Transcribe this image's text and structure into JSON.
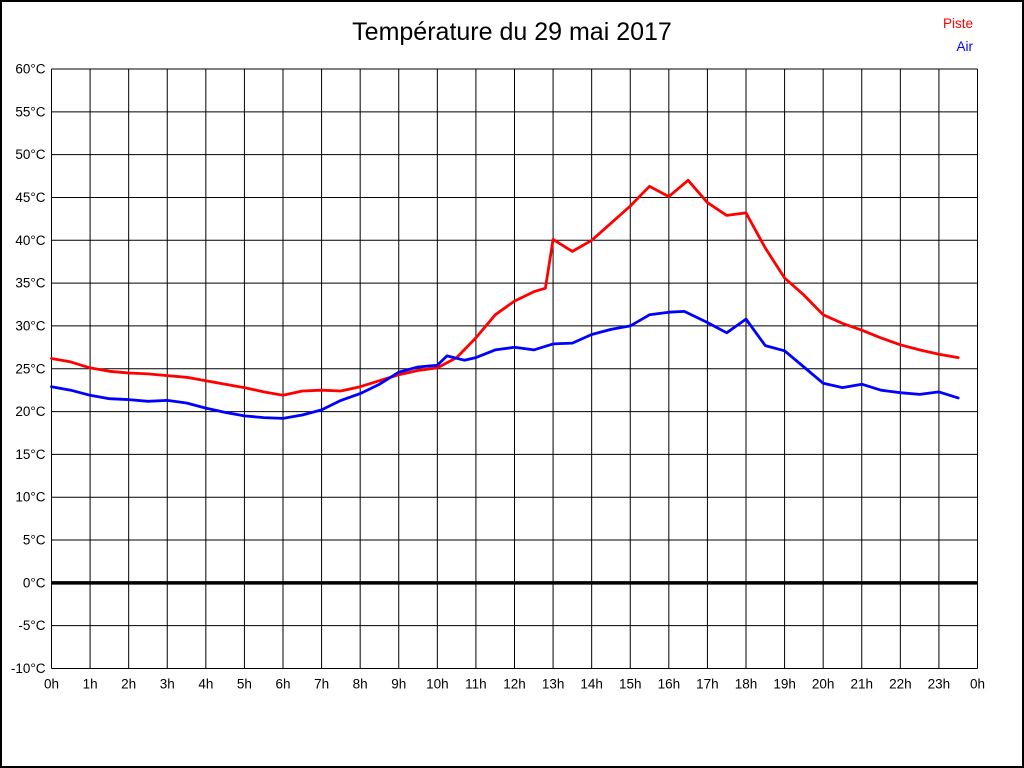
{
  "title": "Température du 29 mai 2017",
  "legend": {
    "position": "top-right",
    "items": [
      {
        "label": "Piste",
        "color": "#ff0000"
      },
      {
        "label": "Air",
        "color": "#0000ff"
      }
    ]
  },
  "chart_data": {
    "type": "line",
    "title": "Température du 29 mai 2017",
    "xlabel": "",
    "ylabel": "",
    "xlim": [
      0,
      24
    ],
    "ylim": [
      -10,
      60
    ],
    "grid": true,
    "grid_color": "#000000",
    "zero_line": {
      "value": 0,
      "color": "#000000",
      "width": 3.5
    },
    "x_tick_step_hours": 1,
    "x_ticks": [
      "0h",
      "1h",
      "2h",
      "3h",
      "4h",
      "5h",
      "6h",
      "7h",
      "8h",
      "9h",
      "10h",
      "11h",
      "12h",
      "13h",
      "14h",
      "15h",
      "16h",
      "17h",
      "18h",
      "19h",
      "20h",
      "21h",
      "22h",
      "23h",
      "0h"
    ],
    "y_tick_step": 5,
    "y_ticks": [
      "60°C",
      "55°C",
      "50°C",
      "45°C",
      "40°C",
      "35°C",
      "30°C",
      "25°C",
      "20°C",
      "15°C",
      "10°C",
      "5°C",
      "0°C",
      "-5°C",
      "-10°C"
    ],
    "series": [
      {
        "name": "Piste",
        "color": "#ff0000",
        "unit": "°C",
        "points": [
          [
            0,
            26.2
          ],
          [
            0.5,
            25.8
          ],
          [
            1,
            25.1
          ],
          [
            1.5,
            24.7
          ],
          [
            2,
            24.5
          ],
          [
            2.5,
            24.4
          ],
          [
            3,
            24.2
          ],
          [
            3.5,
            24.0
          ],
          [
            4,
            23.6
          ],
          [
            4.5,
            23.2
          ],
          [
            5,
            22.8
          ],
          [
            5.5,
            22.3
          ],
          [
            6,
            21.9
          ],
          [
            6.5,
            22.4
          ],
          [
            7,
            22.5
          ],
          [
            7.5,
            22.4
          ],
          [
            8,
            22.9
          ],
          [
            8.5,
            23.6
          ],
          [
            9,
            24.3
          ],
          [
            9.5,
            24.8
          ],
          [
            10,
            25.1
          ],
          [
            10.5,
            26.3
          ],
          [
            11,
            28.6
          ],
          [
            11.5,
            31.3
          ],
          [
            12,
            32.9
          ],
          [
            12.5,
            34.0
          ],
          [
            12.8,
            34.4
          ],
          [
            13,
            40.1
          ],
          [
            13.5,
            38.7
          ],
          [
            14,
            40.0
          ],
          [
            14.5,
            42.0
          ],
          [
            15,
            44.0
          ],
          [
            15.5,
            46.3
          ],
          [
            16,
            45.1
          ],
          [
            16.5,
            47.0
          ],
          [
            17,
            44.4
          ],
          [
            17.5,
            42.9
          ],
          [
            18,
            43.2
          ],
          [
            18.5,
            39.1
          ],
          [
            19,
            35.6
          ],
          [
            19.5,
            33.6
          ],
          [
            20,
            31.3
          ],
          [
            20.5,
            30.3
          ],
          [
            21,
            29.5
          ],
          [
            21.5,
            28.6
          ],
          [
            22,
            27.8
          ],
          [
            22.5,
            27.2
          ],
          [
            23,
            26.7
          ],
          [
            23.5,
            26.3
          ]
        ]
      },
      {
        "name": "Air",
        "color": "#0000ff",
        "unit": "°C",
        "points": [
          [
            0,
            22.9
          ],
          [
            0.5,
            22.5
          ],
          [
            1,
            21.9
          ],
          [
            1.5,
            21.5
          ],
          [
            2,
            21.4
          ],
          [
            2.5,
            21.2
          ],
          [
            3,
            21.3
          ],
          [
            3.5,
            21.0
          ],
          [
            4,
            20.4
          ],
          [
            4.5,
            19.9
          ],
          [
            5,
            19.5
          ],
          [
            5.5,
            19.3
          ],
          [
            6,
            19.2
          ],
          [
            6.5,
            19.6
          ],
          [
            7,
            20.2
          ],
          [
            7.5,
            21.3
          ],
          [
            8,
            22.1
          ],
          [
            8.5,
            23.2
          ],
          [
            9,
            24.6
          ],
          [
            9.5,
            25.2
          ],
          [
            10,
            25.4
          ],
          [
            10.25,
            26.5
          ],
          [
            10.7,
            26.0
          ],
          [
            11,
            26.3
          ],
          [
            11.5,
            27.2
          ],
          [
            12,
            27.5
          ],
          [
            12.5,
            27.2
          ],
          [
            13,
            27.9
          ],
          [
            13.5,
            28.0
          ],
          [
            14,
            29.0
          ],
          [
            14.5,
            29.6
          ],
          [
            15,
            30.0
          ],
          [
            15.5,
            31.3
          ],
          [
            16,
            31.6
          ],
          [
            16.4,
            31.7
          ],
          [
            17,
            30.4
          ],
          [
            17.5,
            29.2
          ],
          [
            18,
            30.8
          ],
          [
            18.5,
            27.7
          ],
          [
            19,
            27.1
          ],
          [
            19.5,
            25.2
          ],
          [
            20,
            23.3
          ],
          [
            20.5,
            22.8
          ],
          [
            21,
            23.2
          ],
          [
            21.5,
            22.5
          ],
          [
            22,
            22.2
          ],
          [
            22.5,
            22.0
          ],
          [
            23,
            22.3
          ],
          [
            23.5,
            21.6
          ]
        ]
      }
    ]
  }
}
